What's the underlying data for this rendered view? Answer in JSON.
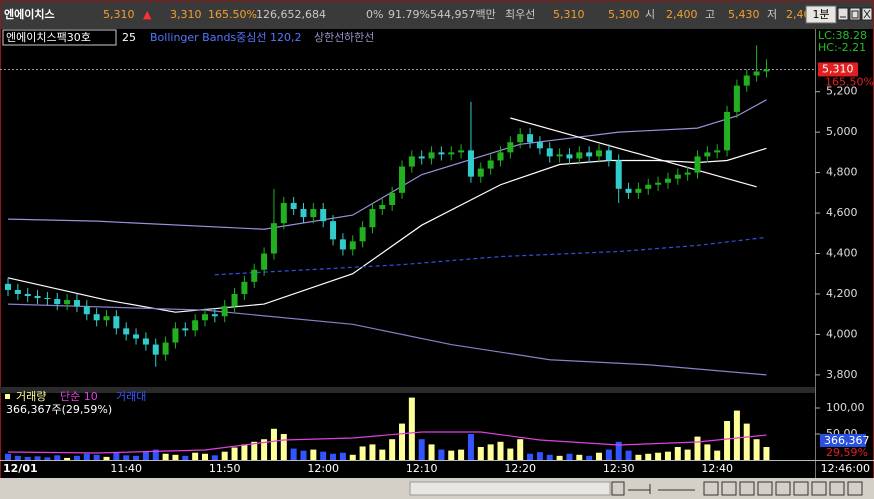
{
  "header": {
    "name": "엔에이치스",
    "price": "5,310",
    "change_arrow": "▲",
    "change": "3,310",
    "change_pct": "165.50%",
    "volume": "126,652,684",
    "pct1": "0%",
    "pct2": "91.79%",
    "amount": "544,957백만",
    "best_label": "최우선",
    "best_ask": "5,310",
    "best_bid": "5,300",
    "open_label": "시",
    "open": "2,400",
    "high_label": "고",
    "high": "5,430",
    "low_label": "저",
    "low": "2,40",
    "period": "1분"
  },
  "chart_data": [
    {
      "type": "candlestick",
      "legend": [
        "엔에이치스팩30호",
        "25",
        "Bollinger Bands중심선 120,2",
        "상한선",
        "하한선"
      ],
      "indicator_labels": [
        "LC:38.28",
        "HC:-2.21"
      ],
      "current": {
        "value": 5310,
        "label": "5,310"
      },
      "current_pct": "165.50%",
      "cursor_time": "12:46:00",
      "categories": [
        "12/01",
        null,
        null,
        null,
        null,
        null,
        null,
        null,
        null,
        null,
        null,
        null,
        "11:40",
        null,
        null,
        null,
        null,
        null,
        null,
        null,
        null,
        null,
        "11:50",
        null,
        null,
        null,
        null,
        null,
        null,
        null,
        null,
        null,
        "12:00",
        null,
        null,
        null,
        null,
        null,
        null,
        null,
        null,
        null,
        "12:10",
        null,
        null,
        null,
        null,
        null,
        null,
        null,
        null,
        null,
        "12:20",
        null,
        null,
        null,
        null,
        null,
        null,
        null,
        null,
        null,
        "12:30",
        null,
        null,
        null,
        null,
        null,
        null,
        null,
        null,
        null,
        "12:40",
        null,
        null,
        null,
        null,
        null
      ],
      "open": [
        4250,
        4220,
        4200,
        4190,
        4180,
        4175,
        4150,
        4170,
        4140,
        4100,
        4070,
        4090,
        4030,
        4000,
        3980,
        3950,
        3900,
        3960,
        4030,
        4020,
        4070,
        4100,
        4090,
        4140,
        4200,
        4260,
        4320,
        4400,
        4550,
        4650,
        4620,
        4580,
        4620,
        4560,
        4470,
        4420,
        4460,
        4530,
        4620,
        4640,
        4700,
        4830,
        4880,
        4870,
        4900,
        4890,
        4900,
        4910,
        4780,
        4820,
        4860,
        4900,
        4950,
        4990,
        4950,
        4920,
        4880,
        4890,
        4870,
        4900,
        4880,
        4910,
        4860,
        4720,
        4700,
        4720,
        4740,
        4750,
        4770,
        4790,
        4800,
        4880,
        4900,
        4910,
        5100,
        5230,
        5280,
        5300
      ],
      "high": [
        4280,
        4250,
        4230,
        4220,
        4210,
        4205,
        4200,
        4200,
        4170,
        4130,
        4120,
        4120,
        4060,
        4030,
        4010,
        3980,
        3990,
        4060,
        4060,
        4100,
        4130,
        4130,
        4170,
        4230,
        4290,
        4350,
        4430,
        4720,
        4680,
        4680,
        4650,
        4650,
        4650,
        4590,
        4500,
        4490,
        4560,
        4650,
        4670,
        4730,
        4860,
        4910,
        4910,
        4930,
        4930,
        4930,
        4940,
        5150,
        4850,
        4890,
        4930,
        4980,
        5020,
        5020,
        4980,
        4950,
        4920,
        4920,
        4930,
        4930,
        4940,
        4940,
        4890,
        4750,
        4750,
        4770,
        4780,
        4800,
        4820,
        4830,
        4910,
        4930,
        4940,
        5130,
        5260,
        5310,
        5430,
        5360
      ],
      "low": [
        4190,
        4170,
        4160,
        4150,
        4145,
        4120,
        4120,
        4110,
        4070,
        4040,
        4040,
        4000,
        3970,
        3950,
        3920,
        3840,
        3870,
        3930,
        3990,
        3990,
        4040,
        4060,
        4060,
        4110,
        4170,
        4230,
        4290,
        4370,
        4520,
        4590,
        4550,
        4550,
        4530,
        4440,
        4390,
        4390,
        4430,
        4500,
        4590,
        4610,
        4670,
        4800,
        4840,
        4840,
        4860,
        4860,
        4870,
        4750,
        4750,
        4790,
        4830,
        4870,
        4920,
        4920,
        4890,
        4850,
        4850,
        4840,
        4840,
        4850,
        4850,
        4830,
        4650,
        4670,
        4670,
        4690,
        4710,
        4720,
        4740,
        4760,
        4770,
        4850,
        4870,
        4880,
        5070,
        5200,
        5250,
        5270
      ],
      "close": [
        4220,
        4200,
        4190,
        4180,
        4175,
        4150,
        4170,
        4140,
        4100,
        4070,
        4090,
        4030,
        4000,
        3980,
        3950,
        3900,
        3960,
        4030,
        4020,
        4070,
        4100,
        4090,
        4140,
        4200,
        4260,
        4320,
        4400,
        4550,
        4650,
        4620,
        4580,
        4620,
        4560,
        4470,
        4420,
        4460,
        4530,
        4620,
        4640,
        4700,
        4830,
        4880,
        4870,
        4900,
        4890,
        4900,
        4910,
        4780,
        4820,
        4860,
        4900,
        4950,
        4990,
        4950,
        4920,
        4880,
        4890,
        4870,
        4900,
        4880,
        4910,
        4860,
        4720,
        4700,
        4720,
        4740,
        4750,
        4770,
        4790,
        4800,
        4880,
        4900,
        4910,
        5100,
        5230,
        5280,
        5300,
        5310
      ],
      "up_color": "#22b022",
      "down_color": "#33cccc",
      "lines": [
        {
          "color": "#ffffff",
          "x": [
            0,
            10,
            17,
            26,
            35,
            42,
            50,
            56,
            61,
            66,
            70,
            73,
            77
          ],
          "values": [
            4280,
            4170,
            4110,
            4150,
            4300,
            4540,
            4740,
            4840,
            4860,
            4860,
            4850,
            4860,
            4920
          ]
        },
        {
          "color": "#9c90dc",
          "x": [
            0,
            9,
            26,
            35,
            42,
            52,
            62,
            70,
            74,
            77
          ],
          "values": [
            4570,
            4560,
            4520,
            4590,
            4790,
            4940,
            5000,
            5020,
            5080,
            5160
          ]
        },
        {
          "color": "#3050e0",
          "dash": true,
          "x": [
            21,
            40,
            50,
            62,
            70,
            77
          ],
          "values": [
            4295,
            4345,
            4385,
            4410,
            4440,
            4480
          ]
        },
        {
          "color": "#8a7fc8",
          "x": [
            0,
            20,
            35,
            45,
            55,
            65,
            77
          ],
          "values": [
            4150,
            4120,
            4050,
            3950,
            3875,
            3850,
            3800
          ]
        },
        {
          "color": "#ffffff",
          "x": [
            51,
            76
          ],
          "values": [
            5070,
            4730
          ]
        }
      ],
      "ylim": [
        3750,
        5505
      ],
      "yticks": [
        {
          "value": 5200,
          "label": "5,200"
        },
        {
          "value": 5000,
          "label": "5,000"
        },
        {
          "value": 4800,
          "label": "4,800"
        },
        {
          "value": 4600,
          "label": "4,600"
        },
        {
          "value": 4400,
          "label": "4,400"
        },
        {
          "value": 4200,
          "label": "4,200"
        },
        {
          "value": 4000,
          "label": "4,000"
        },
        {
          "value": 3800,
          "label": "3,800"
        }
      ]
    },
    {
      "type": "bar",
      "legend": [
        "거래량",
        "단순 10",
        "거래대"
      ],
      "total_label": "366,367주(29,59%)",
      "current_label": "366,367",
      "current_pct": "29,59%",
      "up_color": "#ffff99",
      "down_color": "#3355ff",
      "values": [
        12000,
        8000,
        6000,
        7000,
        5000,
        9000,
        4000,
        8000,
        12000,
        10000,
        6000,
        14000,
        9000,
        8000,
        16000,
        20000,
        12000,
        10000,
        8000,
        14000,
        12000,
        9000,
        16000,
        24000,
        30000,
        35000,
        40000,
        60000,
        50000,
        22000,
        18000,
        20000,
        16000,
        12000,
        14000,
        10000,
        26000,
        30000,
        20000,
        40000,
        70000,
        120000,
        40000,
        30000,
        20000,
        18000,
        20000,
        50000,
        25000,
        30000,
        35000,
        22000,
        40000,
        12000,
        15000,
        10000,
        8000,
        12000,
        10000,
        8000,
        14000,
        20000,
        35000,
        18000,
        10000,
        12000,
        14000,
        16000,
        25000,
        20000,
        45000,
        30000,
        18000,
        75000,
        95000,
        70000,
        40000,
        25000
      ],
      "ma": {
        "color": "#e040e0",
        "x": [
          0,
          9,
          20,
          28,
          35,
          42,
          48,
          54,
          62,
          70,
          77
        ],
        "values": [
          15400,
          13500,
          19200,
          38500,
          42300,
          53800,
          53800,
          38500,
          28800,
          34600,
          48100
        ]
      },
      "ylim": [
        0,
        125000
      ],
      "yticks": [
        {
          "value": 100000,
          "label": "100,00"
        },
        {
          "value": 50000,
          "label": "50,00"
        }
      ]
    }
  ]
}
